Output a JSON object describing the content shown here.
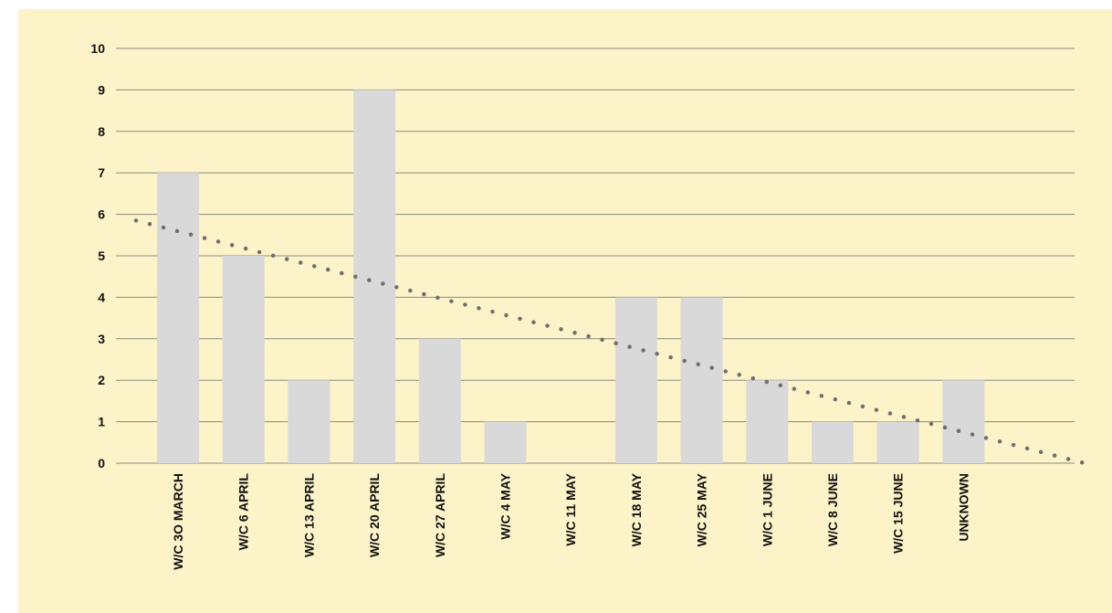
{
  "colors": {
    "background": "#fdf3c8",
    "bar": "#d9d9d9",
    "gridline": "#8a8a80",
    "trendline": "#6f6f6f"
  },
  "chart_data": {
    "type": "bar",
    "title": "",
    "xlabel": "",
    "ylabel": "",
    "categories": [
      "W/C 3O MARCH",
      "W/C 6 APRIL",
      "W/C 13 APRIL",
      "W/C 20 APRIL",
      "W/C 27 APRIL",
      "W/C 4 MAY",
      "W/C 11 MAY",
      "W/C 18 MAY",
      "W/C 25 MAY",
      "W/C 1 JUNE",
      "W/C 8 JUNE",
      "W/C 15 JUNE",
      "UNKNOWN"
    ],
    "values": [
      7,
      5,
      2,
      9,
      3,
      1,
      0,
      4,
      4,
      2,
      1,
      1,
      2
    ],
    "ylim": [
      0,
      10
    ],
    "yticks": [
      "0",
      "1",
      "2",
      "3",
      "4",
      "5",
      "6",
      "7",
      "8",
      "9",
      "10"
    ],
    "grid": true,
    "legend": "none",
    "trendline": {
      "type": "linear",
      "style": "dotted",
      "start_value": 5.85,
      "end_value": 0
    }
  }
}
